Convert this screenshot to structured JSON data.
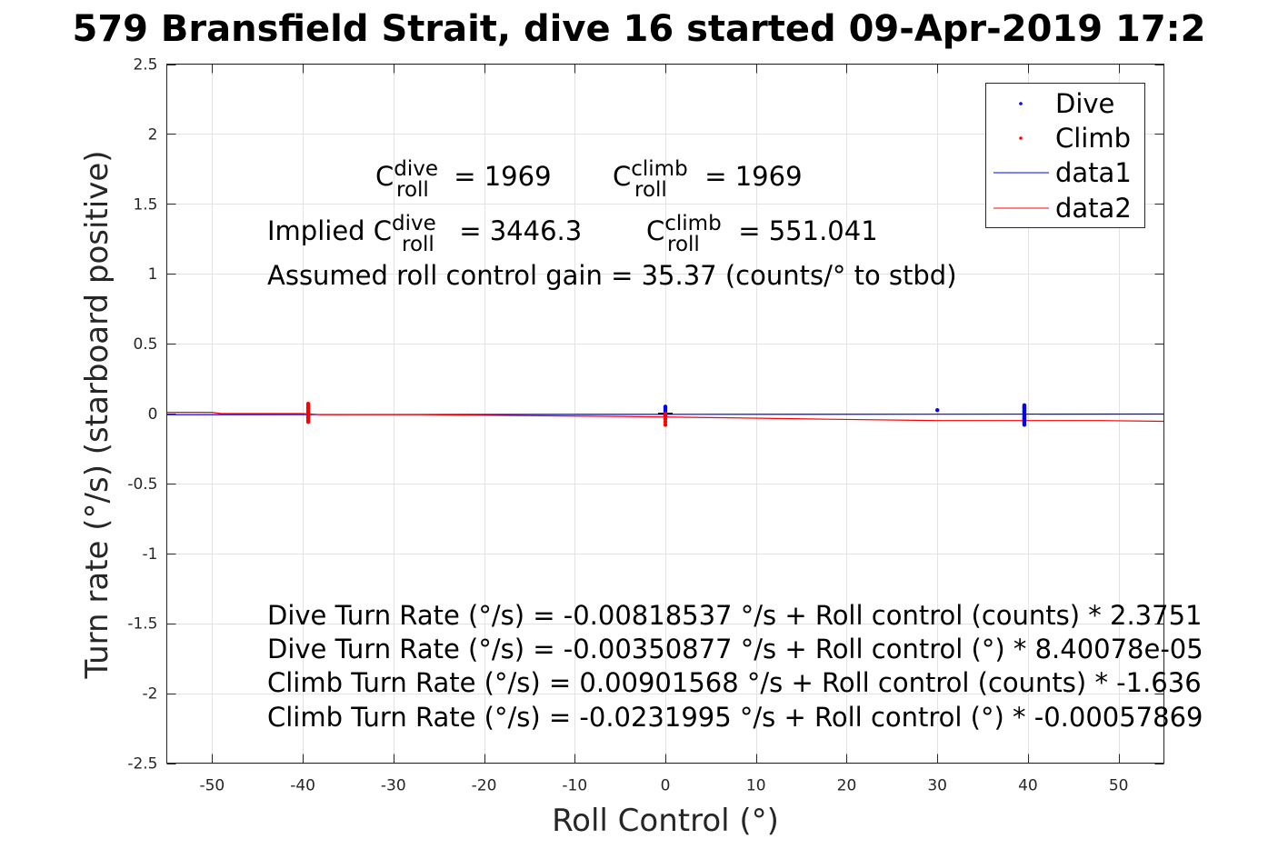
{
  "chart_data": {
    "type": "scatter",
    "title": "579 Bransfield Strait, dive 16 started 09-Apr-2019 17:2",
    "xlabel": "Roll Control (°)",
    "ylabel": "Turn rate (°/s) (starboard positive)",
    "xlim": [
      -55,
      55
    ],
    "ylim": [
      -2.5,
      2.5
    ],
    "xticks": [
      -50,
      -40,
      -30,
      -20,
      -10,
      0,
      10,
      20,
      30,
      40,
      50
    ],
    "xtick_labels": [
      "-50",
      "-40",
      "-30",
      "-20",
      "-10",
      "0",
      "10",
      "20",
      "30",
      "40",
      "50"
    ],
    "yticks": [
      2.5,
      2,
      1.5,
      1,
      0.5,
      0,
      -0.5,
      -1,
      -1.5,
      -2,
      -2.5
    ],
    "ytick_labels": [
      "2.5",
      "2",
      "1.5",
      "1",
      "0.5",
      "0",
      "-0.5",
      "-1",
      "-1.5",
      "-2",
      "-2.5"
    ],
    "grid": true,
    "legend_position": "top-right",
    "series": [
      {
        "name": "Dive",
        "kind": "points",
        "color": "#0000ff",
        "x": [
          39.6,
          39.6,
          39.6,
          39.6,
          39.6,
          39.6,
          39.6,
          39.6,
          39.6,
          39.6,
          39.6,
          39.6,
          39.6,
          39.6,
          39.6,
          39.6,
          39.6,
          39.6,
          39.6,
          0,
          0,
          0,
          0,
          0,
          0,
          0,
          0,
          30.0
        ],
        "y": [
          0.06,
          0.05,
          0.04,
          0.03,
          0.02,
          0.01,
          0.0,
          -0.01,
          -0.02,
          -0.03,
          -0.04,
          -0.05,
          -0.06,
          -0.07,
          -0.08,
          0.045,
          -0.035,
          0.015,
          -0.055,
          0.05,
          0.04,
          0.03,
          0.02,
          0.01,
          0.0,
          -0.01,
          -0.02,
          0.025
        ]
      },
      {
        "name": "Climb",
        "kind": "points",
        "color": "#ff0000",
        "x": [
          -39.4,
          -39.4,
          -39.4,
          -39.4,
          -39.4,
          -39.4,
          -39.4,
          -39.4,
          -39.4,
          -39.4,
          -39.4,
          -39.4,
          -39.4,
          -39.4,
          -39.4,
          -39.4,
          0,
          0,
          0,
          0,
          0
        ],
        "y": [
          0.07,
          0.06,
          0.05,
          0.04,
          0.03,
          0.02,
          0.01,
          0.0,
          -0.01,
          -0.02,
          -0.03,
          -0.04,
          -0.05,
          -0.06,
          0.035,
          -0.015,
          0.0,
          -0.02,
          -0.04,
          -0.06,
          -0.08
        ]
      },
      {
        "name": "data1",
        "kind": "line",
        "color": "#0000ff",
        "x": [
          -55,
          55
        ],
        "y": [
          -0.0081,
          -0.0035
        ]
      },
      {
        "name": "data2",
        "kind": "line",
        "color": "#ff0000",
        "x": [
          -55,
          -50,
          -49,
          -40,
          -38,
          -27,
          -15,
          -5,
          7,
          18,
          30,
          48,
          55
        ],
        "y": [
          0.009,
          0.009,
          0.0,
          0.0,
          -0.008,
          -0.008,
          -0.015,
          -0.02,
          -0.03,
          -0.04,
          -0.05,
          -0.05,
          -0.055
        ]
      }
    ]
  },
  "annotations": {
    "coef_dive": {
      "C": "C",
      "sup": "dive",
      "sub": "roll",
      "rest": " = 1969"
    },
    "coef_climb": {
      "C": "C",
      "sup": "climb",
      "sub": "roll",
      "rest": " = 1969"
    },
    "implied_dive": {
      "prefix": "Implied C",
      "sup": "dive",
      "sub": "roll",
      "rest": " = 3446.3"
    },
    "implied_climb": {
      "C": "C",
      "sup": "climb",
      "sub": "roll",
      "rest": " = 551.041"
    },
    "gain": "Assumed roll control gain = 35.37 (counts/° to stbd)",
    "fits": [
      "Dive Turn Rate (°/s) = -0.00818537 °/s + Roll control (counts) * 2.3751",
      "Dive Turn Rate (°/s) = -0.00350877 °/s + Roll control (°) * 8.40078e-05",
      "Climb Turn Rate (°/s) = 0.00901568 °/s + Roll control (counts) * -1.636",
      "Climb Turn Rate (°/s) = -0.0231995 °/s + Roll control (°) * -0.00057869"
    ]
  },
  "legend": {
    "items": [
      "Dive",
      "Climb",
      "data1",
      "data2"
    ]
  }
}
